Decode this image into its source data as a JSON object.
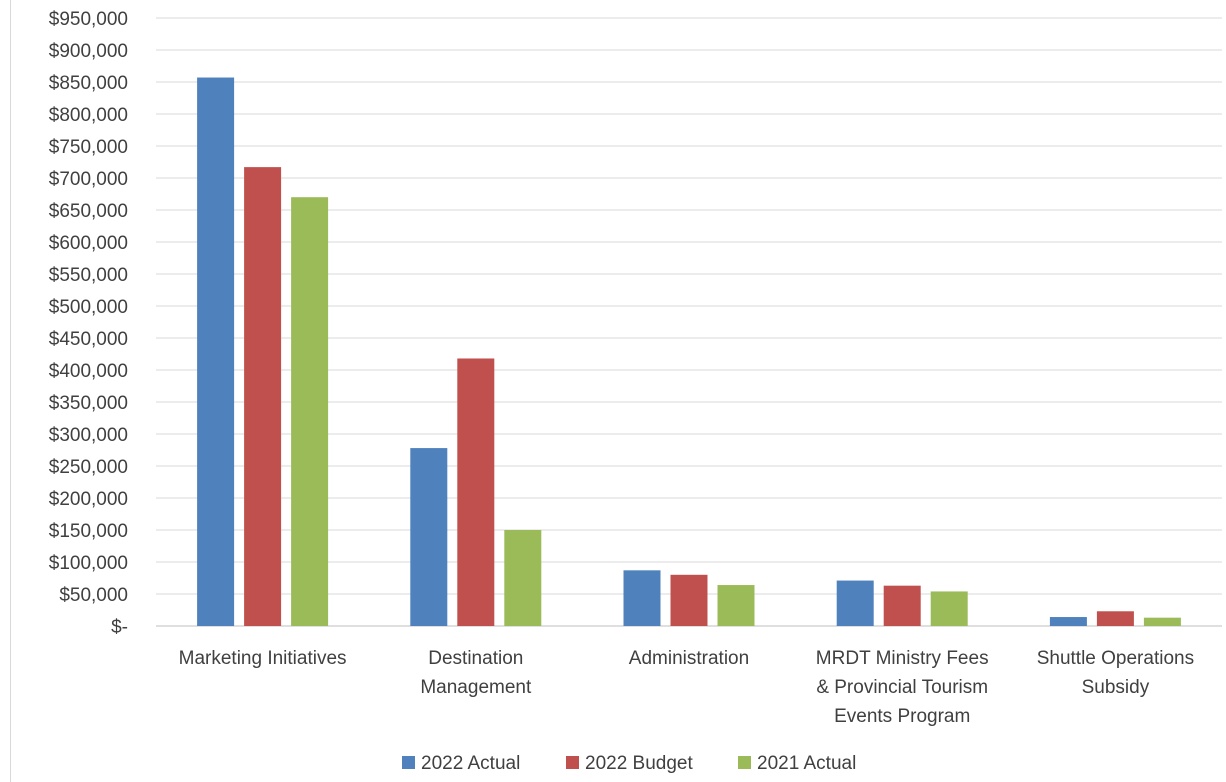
{
  "chart_data": {
    "type": "bar",
    "categories": [
      [
        "Marketing Initiatives"
      ],
      [
        "Destination",
        "Management"
      ],
      [
        "Administration"
      ],
      [
        "MRDT Ministry Fees",
        "& Provincial Tourism",
        "Events Program"
      ],
      [
        "Shuttle Operations",
        "Subsidy"
      ]
    ],
    "series": [
      {
        "name": "2022 Actual",
        "color": "#4f81bd",
        "values": [
          857000,
          278000,
          87000,
          71000,
          14000
        ]
      },
      {
        "name": "2022 Budget",
        "color": "#c0504d",
        "values": [
          717000,
          418000,
          80000,
          63000,
          23000
        ]
      },
      {
        "name": "2021 Actual",
        "color": "#9bbb59",
        "values": [
          670000,
          150000,
          64000,
          54000,
          13000
        ]
      }
    ],
    "ylim": [
      0,
      950000
    ],
    "ytick_step": 50000,
    "ytick_labels": [
      "$-",
      "$50,000",
      "$100,000",
      "$150,000",
      "$200,000",
      "$250,000",
      "$300,000",
      "$350,000",
      "$400,000",
      "$450,000",
      "$500,000",
      "$550,000",
      "$600,000",
      "$650,000",
      "$700,000",
      "$750,000",
      "$800,000",
      "$850,000",
      "$900,000",
      "$950,000"
    ],
    "grid": true,
    "legend": "bottom-center",
    "title": "",
    "xlabel": "",
    "ylabel": ""
  }
}
